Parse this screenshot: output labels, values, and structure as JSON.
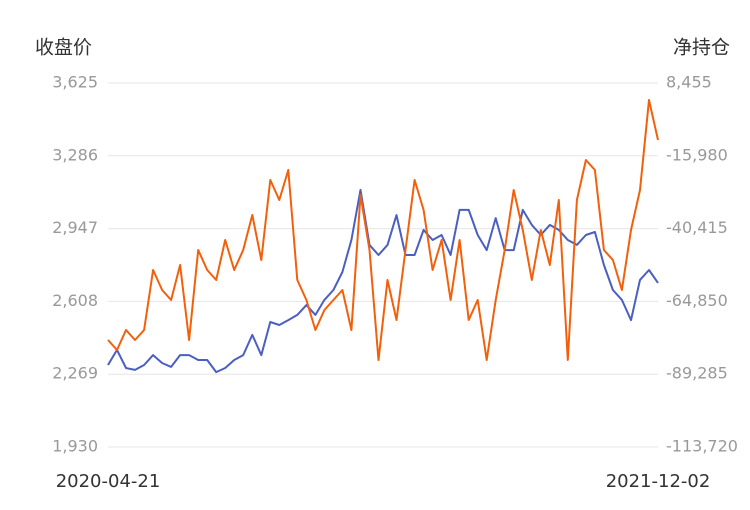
{
  "chart_data": {
    "type": "line",
    "y_label": "收盘价",
    "y2_label": "净持仓",
    "categories": [
      "2020-04-21",
      null,
      null,
      null,
      null,
      null,
      null,
      null,
      null,
      null,
      null,
      null,
      null,
      null,
      null,
      null,
      null,
      null,
      null,
      null,
      null,
      null,
      null,
      null,
      null,
      null,
      null,
      null,
      null,
      null,
      null,
      null,
      null,
      null,
      null,
      null,
      null,
      null,
      null,
      null,
      null,
      null,
      null,
      null,
      null,
      null,
      null,
      null,
      null,
      null,
      null,
      null,
      null,
      null,
      null,
      null,
      null,
      null,
      null,
      null,
      null,
      "2021-12-02"
    ],
    "series": [
      {
        "color": "#4a5fc1",
        "values": [
          2312,
          2382,
          2298,
          2289,
          2312,
          2358,
          2321,
          2303,
          2358,
          2358,
          2335,
          2335,
          2279,
          2298,
          2335,
          2358,
          2452,
          2358,
          2512,
          2498,
          2521,
          2545,
          2591,
          2545,
          2615,
          2661,
          2745,
          2894,
          3127,
          2871,
          2824,
          2871,
          3010,
          2824,
          2824,
          2941,
          2894,
          2917,
          2824,
          3034,
          3034,
          2917,
          2847,
          2996,
          2847,
          2847,
          3034,
          2964,
          2917,
          2964,
          2941,
          2894,
          2871,
          2917,
          2931,
          2778,
          2661,
          2615,
          2521,
          2708,
          2754,
          2694
        ]
      },
      {
        "color": "#f2600c",
        "axis": "y2",
        "values": [
          -77811,
          -81167,
          -74455,
          -77811,
          -74455,
          -54319,
          -61031,
          -64387,
          -52641,
          -77811,
          -47607,
          -54319,
          -57675,
          -44251,
          -54319,
          -47607,
          -35861,
          -50963,
          -24115,
          -30827,
          -20759,
          -57675,
          -64387,
          -74455,
          -67743,
          -64387,
          -61031,
          -74455,
          -29149,
          -47607,
          -84523,
          -57675,
          -71099,
          -47607,
          -24115,
          -34183,
          -54319,
          -44251,
          -64387,
          -44251,
          -71099,
          -64387,
          -84523,
          -64387,
          -47607,
          -27471,
          -40895,
          -57675,
          -40895,
          -52641,
          -30827,
          -84523,
          -30827,
          -17403,
          -20759,
          -47607,
          -50963,
          -61031,
          -40895,
          -27471,
          2733,
          -10691
        ]
      }
    ],
    "ylim": [
      1930,
      3625
    ],
    "yticks": [
      {
        "value": 1930,
        "label": "1,930"
      },
      {
        "value": 2269,
        "label": "2,269"
      },
      {
        "value": 2608,
        "label": "2,608"
      },
      {
        "value": 2947,
        "label": "2,947"
      },
      {
        "value": 3286,
        "label": "3,286"
      },
      {
        "value": 3625,
        "label": "3,625"
      }
    ],
    "y2lim": [
      -113720,
      8455
    ],
    "y2ticks": [
      {
        "value": -113720,
        "label": "-113,720"
      },
      {
        "value": -89285,
        "label": "-89,285"
      },
      {
        "value": -64850,
        "label": "-64,850"
      },
      {
        "value": -40415,
        "label": "-40,415"
      },
      {
        "value": -15980,
        "label": "-15,980"
      },
      {
        "value": 8455,
        "label": "8,455"
      }
    ],
    "grid": true
  }
}
